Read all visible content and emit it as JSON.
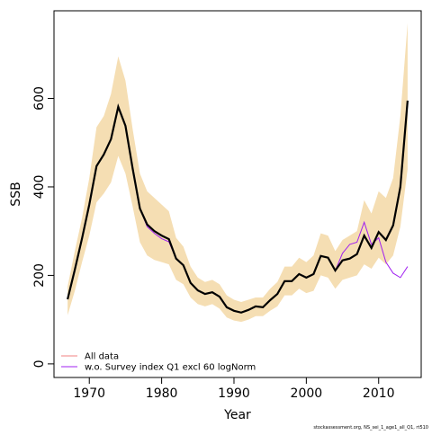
{
  "chart_data": {
    "type": "line",
    "x_label": "Year",
    "y_label": "SSB",
    "footnote": "stockassessment.org, NS_sei_1_age1_all_Q1, rt510",
    "x": [
      1967,
      1968,
      1969,
      1970,
      1971,
      1972,
      1973,
      1974,
      1975,
      1976,
      1977,
      1978,
      1979,
      1980,
      1981,
      1982,
      1983,
      1984,
      1985,
      1986,
      1987,
      1988,
      1989,
      1990,
      1991,
      1992,
      1993,
      1994,
      1995,
      1996,
      1997,
      1998,
      1999,
      2000,
      2001,
      2002,
      2003,
      2004,
      2005,
      2006,
      2007,
      2008,
      2009,
      2010,
      2011,
      2012,
      2013,
      2014
    ],
    "series": [
      {
        "name": "All data",
        "color": "#f08080",
        "line_color": "#000000",
        "band_color": "#f5deb3",
        "values": [
          146,
          213,
          284,
          360,
          447,
          473,
          508,
          581,
          538,
          441,
          351,
          315,
          300,
          290,
          282,
          238,
          223,
          183,
          166,
          158,
          162,
          152,
          128,
          120,
          116,
          122,
          130,
          128,
          144,
          158,
          187,
          187,
          203,
          195,
          203,
          244,
          240,
          211,
          234,
          238,
          248,
          290,
          262,
          298,
          280,
          313,
          400,
          595
        ],
        "band_upper": [
          175,
          255,
          330,
          420,
          535,
          560,
          610,
          695,
          640,
          530,
          430,
          390,
          375,
          360,
          345,
          285,
          265,
          220,
          195,
          185,
          190,
          180,
          155,
          145,
          140,
          145,
          150,
          150,
          170,
          185,
          220,
          220,
          240,
          230,
          245,
          295,
          290,
          255,
          280,
          290,
          300,
          370,
          340,
          390,
          375,
          420,
          560,
          770
        ],
        "band_lower": [
          110,
          165,
          230,
          290,
          365,
          385,
          410,
          470,
          430,
          355,
          275,
          245,
          235,
          230,
          225,
          190,
          180,
          150,
          135,
          130,
          135,
          125,
          105,
          98,
          95,
          100,
          108,
          108,
          120,
          130,
          155,
          155,
          170,
          160,
          165,
          200,
          195,
          170,
          190,
          195,
          200,
          225,
          215,
          240,
          225,
          245,
          310,
          440
        ]
      },
      {
        "name": "w.o. Survey index Q1 excl 60 logNorm",
        "color": "#a020f0",
        "values": [
          146,
          213,
          284,
          360,
          447,
          473,
          508,
          581,
          538,
          441,
          351,
          310,
          295,
          283,
          276,
          238,
          223,
          183,
          166,
          158,
          162,
          152,
          128,
          120,
          116,
          122,
          130,
          128,
          144,
          158,
          187,
          187,
          203,
          195,
          203,
          244,
          240,
          210,
          250,
          270,
          275,
          320,
          270,
          285,
          230,
          205,
          195,
          220
        ]
      }
    ],
    "xlim": [
      1965.12,
      2015.88
    ],
    "ylim": [
      -30.7,
      798
    ],
    "xticks": [
      1970,
      1980,
      1990,
      2000,
      2010
    ],
    "yticks": [
      0,
      200,
      400,
      600
    ],
    "legend": "bottom-left"
  }
}
